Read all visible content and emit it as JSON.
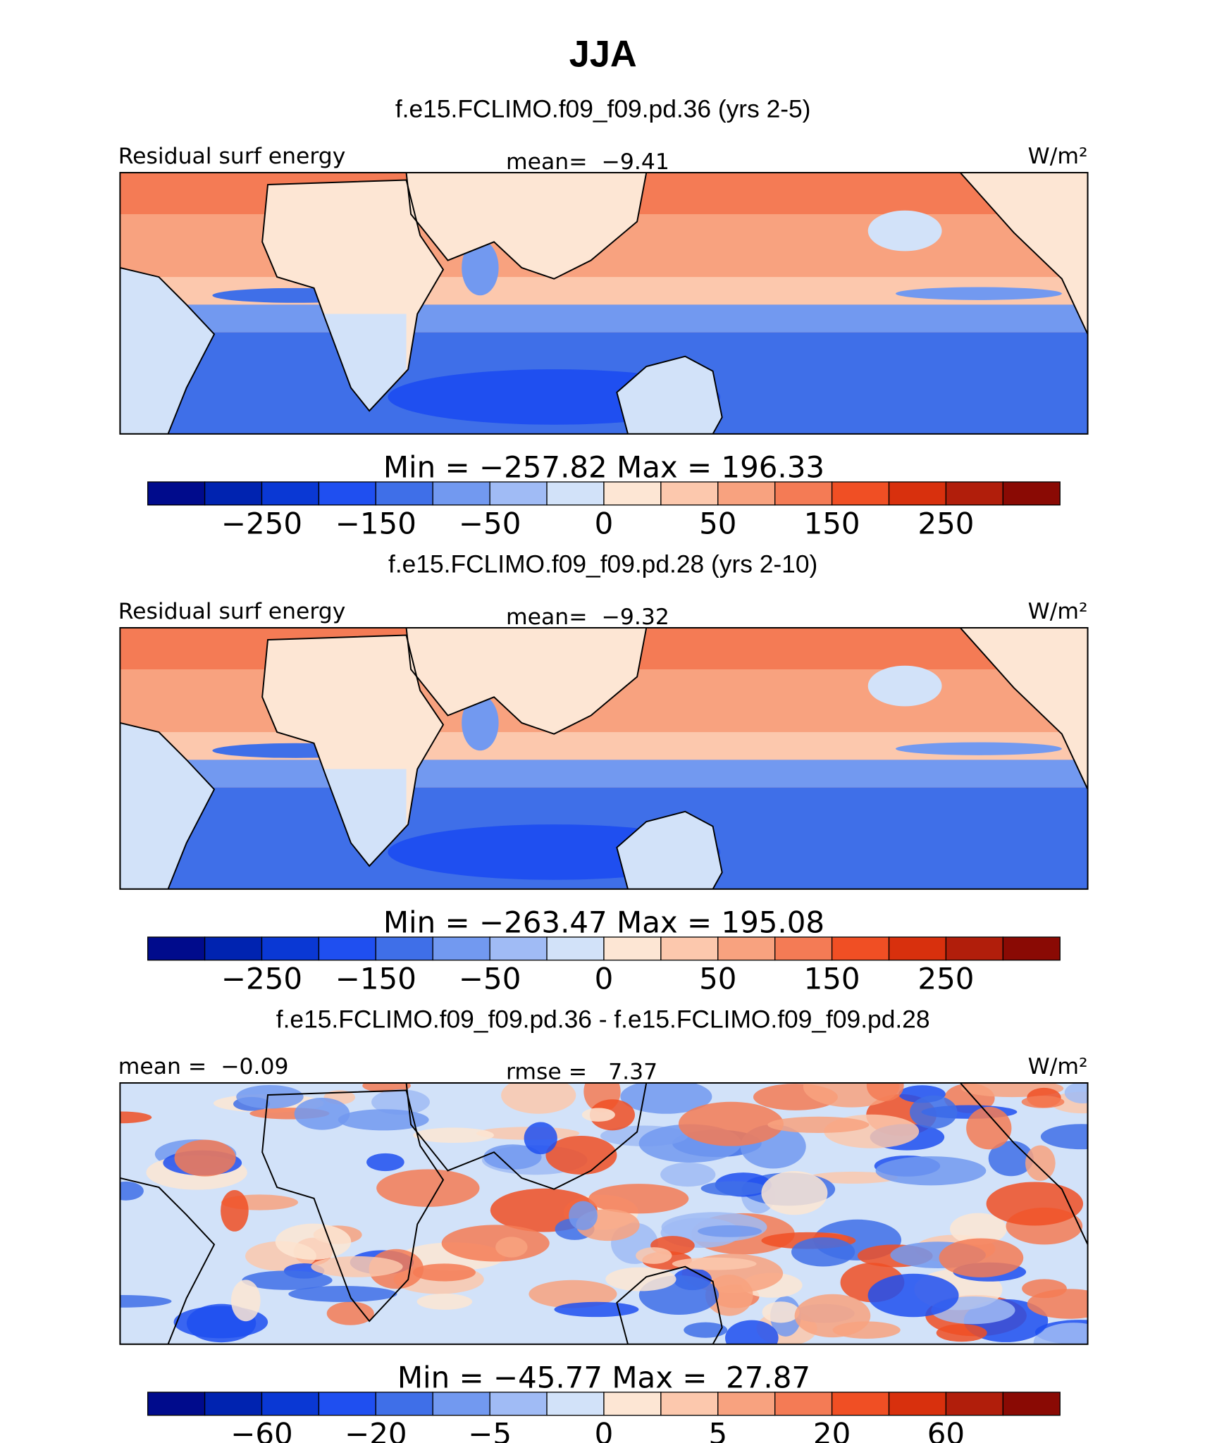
{
  "header": {
    "title": "JJA"
  },
  "panels": [
    {
      "subtitle": "f.e15.FCLIMO.f09_f09.pd.36 (yrs 2-5)",
      "left_label": "Residual surf energy",
      "center_label": "mean=  −9.41",
      "units": "W/m²",
      "stats": "Min = −257.82 Max = 196.33",
      "colorbar": {
        "colors": [
          "#000b8c",
          "#0023b0",
          "#0a38d4",
          "#1f4ff0",
          "#3f6fe8",
          "#7299f0",
          "#a0bbf5",
          "#d2e2f9",
          "#fde6d4",
          "#fcc8ad",
          "#f8a27f",
          "#f47b55",
          "#f04f24",
          "#d8300d",
          "#b11e0b",
          "#8a0a04"
        ],
        "labels": [
          null,
          "−250",
          null,
          "−150",
          null,
          "−50",
          null,
          "0",
          null,
          "50",
          null,
          "150",
          null,
          "250",
          null
        ]
      }
    },
    {
      "subtitle": "f.e15.FCLIMO.f09_f09.pd.28 (yrs 2-10)",
      "left_label": "Residual surf energy",
      "center_label": "mean=  −9.32",
      "units": "W/m²",
      "stats": "Min = −263.47 Max = 195.08",
      "colorbar": {
        "colors": [
          "#000b8c",
          "#0023b0",
          "#0a38d4",
          "#1f4ff0",
          "#3f6fe8",
          "#7299f0",
          "#a0bbf5",
          "#d2e2f9",
          "#fde6d4",
          "#fcc8ad",
          "#f8a27f",
          "#f47b55",
          "#f04f24",
          "#d8300d",
          "#b11e0b",
          "#8a0a04"
        ],
        "labels": [
          null,
          "−250",
          null,
          "−150",
          null,
          "−50",
          null,
          "0",
          null,
          "50",
          null,
          "150",
          null,
          "250",
          null
        ]
      }
    },
    {
      "subtitle": "f.e15.FCLIMO.f09_f09.pd.36 - f.e15.FCLIMO.f09_f09.pd.28",
      "left_label": "mean =  −0.09",
      "center_label": "rmse =   7.37",
      "units": "W/m²",
      "stats": "Min = −45.77 Max =  27.87",
      "colorbar": {
        "colors": [
          "#000b8c",
          "#0023b0",
          "#0a38d4",
          "#1f4ff0",
          "#3f6fe8",
          "#7299f0",
          "#a0bbf5",
          "#d2e2f9",
          "#fde6d4",
          "#fcc8ad",
          "#f8a27f",
          "#f47b55",
          "#f04f24",
          "#d8300d",
          "#b11e0b",
          "#8a0a04"
        ],
        "labels": [
          null,
          "−60",
          null,
          "−20",
          null,
          "−5",
          null,
          "0",
          null,
          "5",
          null,
          "20",
          null,
          "60",
          null
        ]
      }
    }
  ]
}
